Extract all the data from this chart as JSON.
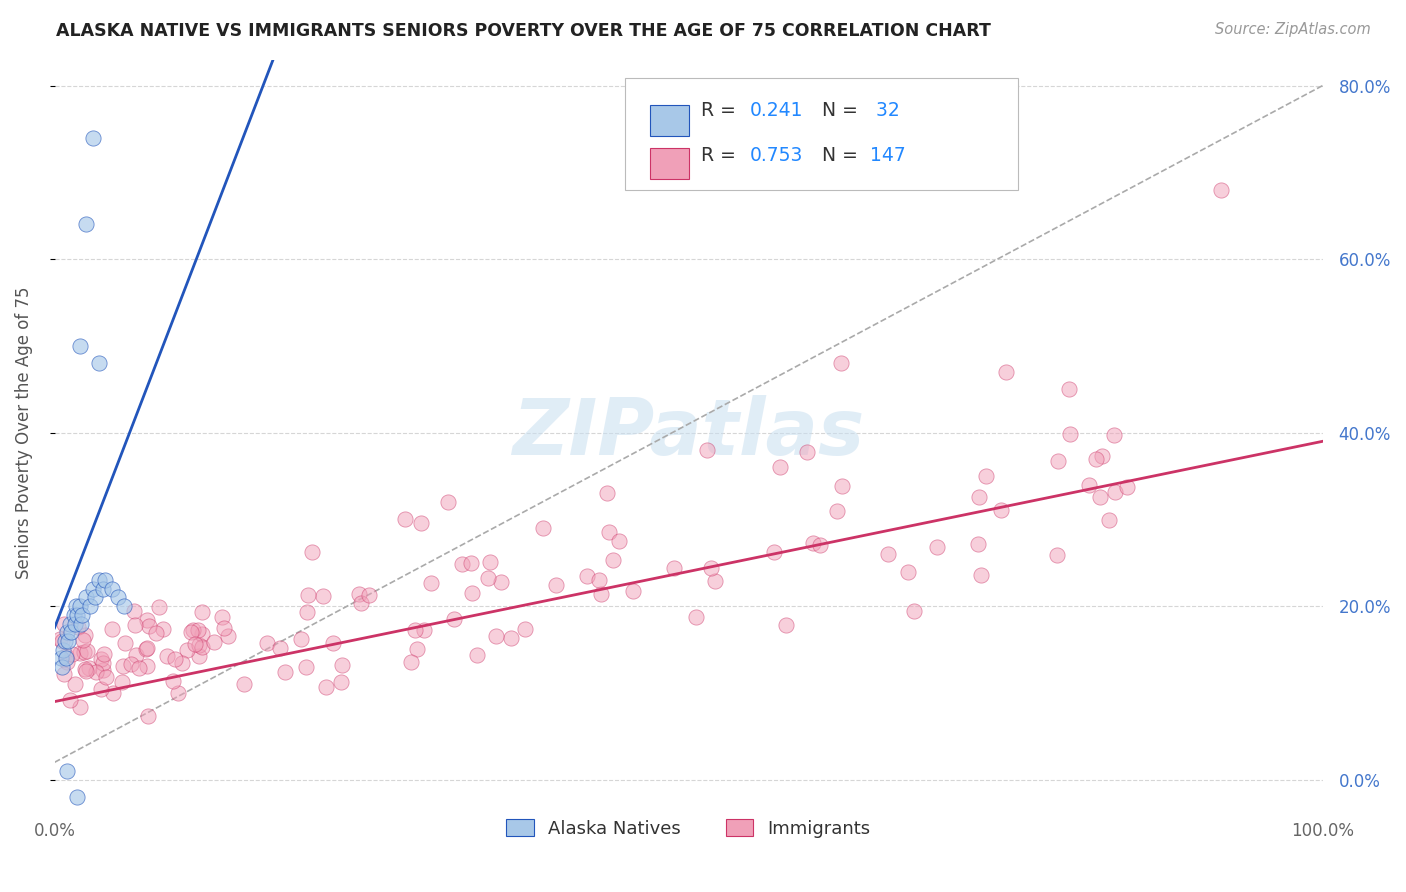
{
  "title": "ALASKA NATIVE VS IMMIGRANTS SENIORS POVERTY OVER THE AGE OF 75 CORRELATION CHART",
  "source": "Source: ZipAtlas.com",
  "ylabel": "Seniors Poverty Over the Age of 75",
  "xlim": [
    0,
    1.0
  ],
  "ylim": [
    -0.03,
    0.83
  ],
  "ytick_positions": [
    0.0,
    0.2,
    0.4,
    0.6,
    0.8
  ],
  "ytick_labels_right": [
    "0.0%",
    "20.0%",
    "40.0%",
    "60.0%",
    "80.0%"
  ],
  "color_blue": "#a8c8e8",
  "color_pink": "#f0a0b8",
  "line_color_blue": "#2255bb",
  "line_color_pink": "#cc3366",
  "watermark": "ZIPatlas",
  "background_color": "#ffffff",
  "grid_color": "#cccccc",
  "blue_line_slope": 4.2,
  "blue_line_intercept": 0.17,
  "pink_line_slope": 0.3,
  "pink_line_intercept": 0.09,
  "diag_slope": 0.78,
  "diag_intercept": 0.02
}
